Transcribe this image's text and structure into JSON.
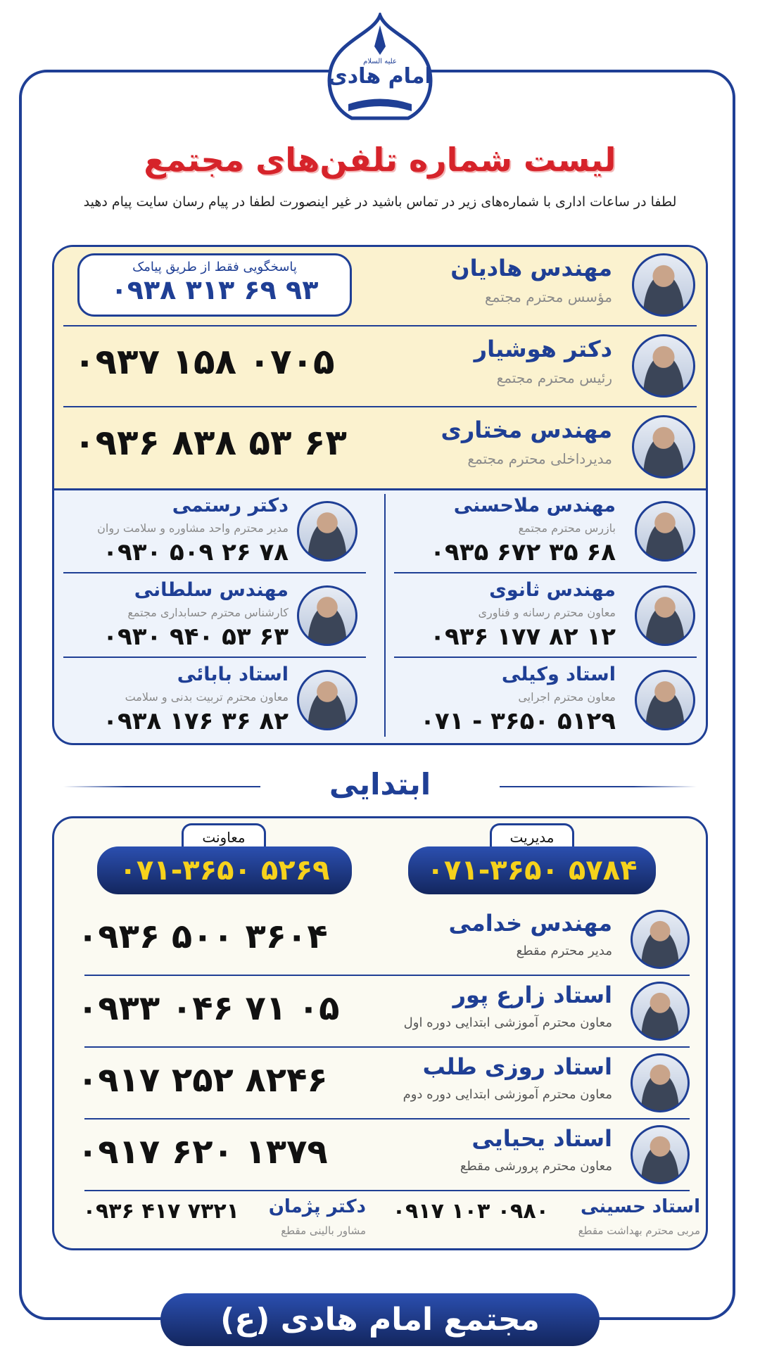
{
  "logo": {
    "title": "امام هادی",
    "subtitle": "علیه السلام"
  },
  "header": {
    "title": "لیست شماره تلفن‌های مجتمع",
    "subtitle": "لطفا در ساعات اداری با شماره‌های زیر در تماس باشید در غیر اینصورت لطفا در پیام رسان سایت پیام دهید"
  },
  "top_contacts": [
    {
      "name": "مهندس هادیان",
      "role": "مؤسس محترم مجتمع",
      "note": "پاسخگویی فقط از طریق پیامک",
      "phone": "۰۹۳۸ ۳۱۳ ۶۹ ۹۳"
    },
    {
      "name": "دکتر هوشیار",
      "role": "رئیس محترم مجتمع",
      "phone": "۰۹۳۷ ۱۵۸ ۰۷۰۵"
    },
    {
      "name": "مهندس مختاری",
      "role": "مدیرداخلی محترم مجتمع",
      "phone": "۰۹۳۶ ۸۳۸ ۵۳ ۶۳"
    }
  ],
  "staff_grid": {
    "right": [
      {
        "name": "مهندس ملاحسنی",
        "role": "بازرس محترم مجتمع",
        "phone": "۰۹۳۵ ۶۷۲ ۳۵ ۶۸"
      },
      {
        "name": "مهندس ثانوی",
        "role": "معاون محترم رسانه و فناوری",
        "phone": "۰۹۳۶ ۱۷۷ ۸۲ ۱۲"
      },
      {
        "name": "استاد وکیلی",
        "role": "معاون محترم اجرایی",
        "phone": "۰۷۱ - ۳۶۵۰ ۵۱۲۹"
      }
    ],
    "left": [
      {
        "name": "دکتر رستمی",
        "role": "مدیر محترم واحد مشاوره و سلامت روان",
        "phone": "۰۹۳۰ ۵۰۹ ۲۶ ۷۸"
      },
      {
        "name": "مهندس سلطانی",
        "role": "کارشناس محترم حسابداری مجتمع",
        "phone": "۰۹۳۰ ۹۴۰ ۵۳ ۶۳"
      },
      {
        "name": "استاد بابائی",
        "role": "معاون محترم تربیت بدنی و سلامت",
        "phone": "۰۹۳۸ ۱۷۶ ۳۶ ۸۲"
      }
    ]
  },
  "section": {
    "title": "ابتدایی",
    "offices": [
      {
        "label": "مدیریت",
        "phone": "۰۷۱-۳۶۵۰ ۵۷۸۴"
      },
      {
        "label": "معاونت",
        "phone": "۰۷۱-۳۶۵۰ ۵۲۶۹"
      }
    ],
    "contacts": [
      {
        "name": "مهندس خدامی",
        "role": "مدیر محترم مقطع",
        "phone": "۰۹۳۶ ۵۰۰ ۳۶۰۴"
      },
      {
        "name": "استاد زارع پور",
        "role": "معاون محترم آموزشی ابتدایی دوره اول",
        "phone": "۰۹۳۳ ۰۴۶ ۷۱ ۰۵"
      },
      {
        "name": "استاد روزی طلب",
        "role": "معاون محترم آموزشی ابتدایی دوره دوم",
        "phone": "۰۹۱۷ ۲۵۲ ۸۲۴۶"
      },
      {
        "name": "استاد یحیایی",
        "role": "معاون محترم پرورشی مقطع",
        "phone": "۰۹۱۷ ۶۲۰ ۱۳۷۹"
      }
    ],
    "extra": [
      {
        "name": "استاد حسینی",
        "role": "مربی محترم بهداشت مقطع",
        "phone": "۰۹۱۷ ۱۰۳ ۰۹۸۰"
      },
      {
        "name": "دکتر پژمان",
        "role": "مشاور بالینی مقطع",
        "phone": "۰۹۳۶ ۴۱۷ ۷۳۲۱"
      }
    ]
  },
  "footer": "مجتمع امام هادی (ع)"
}
